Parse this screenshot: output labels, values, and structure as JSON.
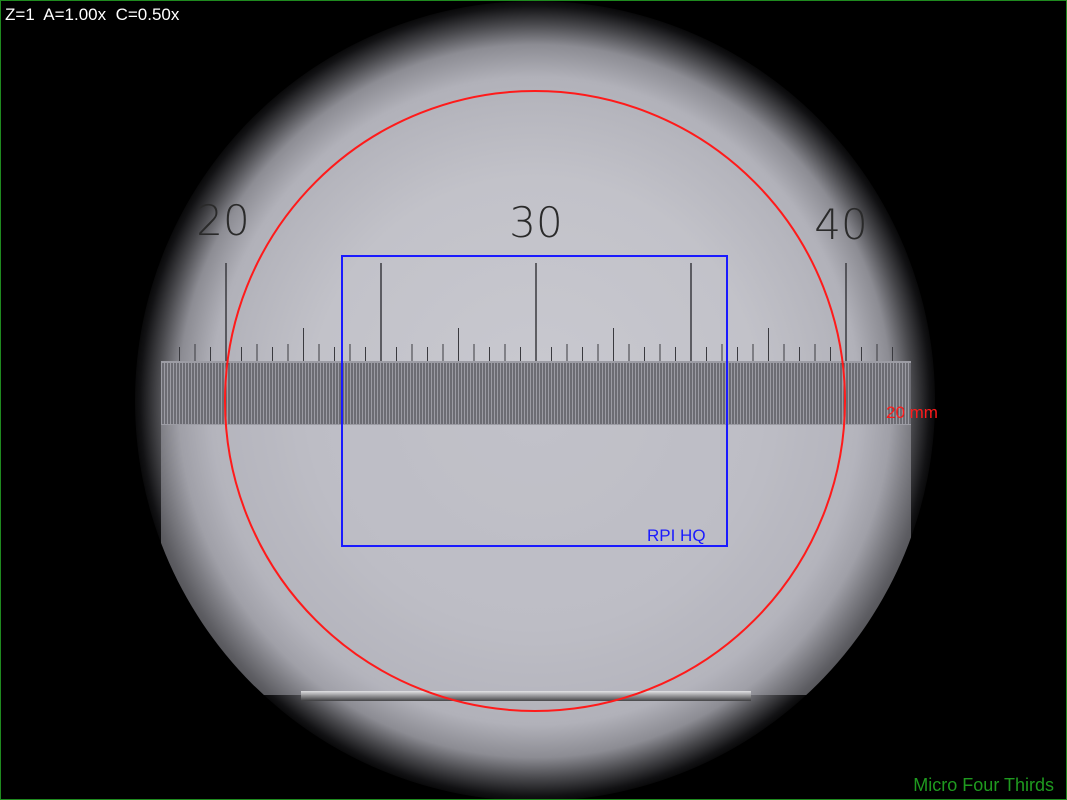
{
  "status": {
    "readout": "Z=1  A=1.00x  C=0.50x"
  },
  "overlay": {
    "circle_label": "20 mm",
    "sensor_label": "RPI HQ",
    "format_label": "Micro Four Thirds",
    "circle_color": "#ff1a1a",
    "sensor_color": "#1a1aff",
    "format_color": "#1f9a1f"
  },
  "scale": {
    "labels": [
      "20",
      "30",
      "40"
    ]
  }
}
